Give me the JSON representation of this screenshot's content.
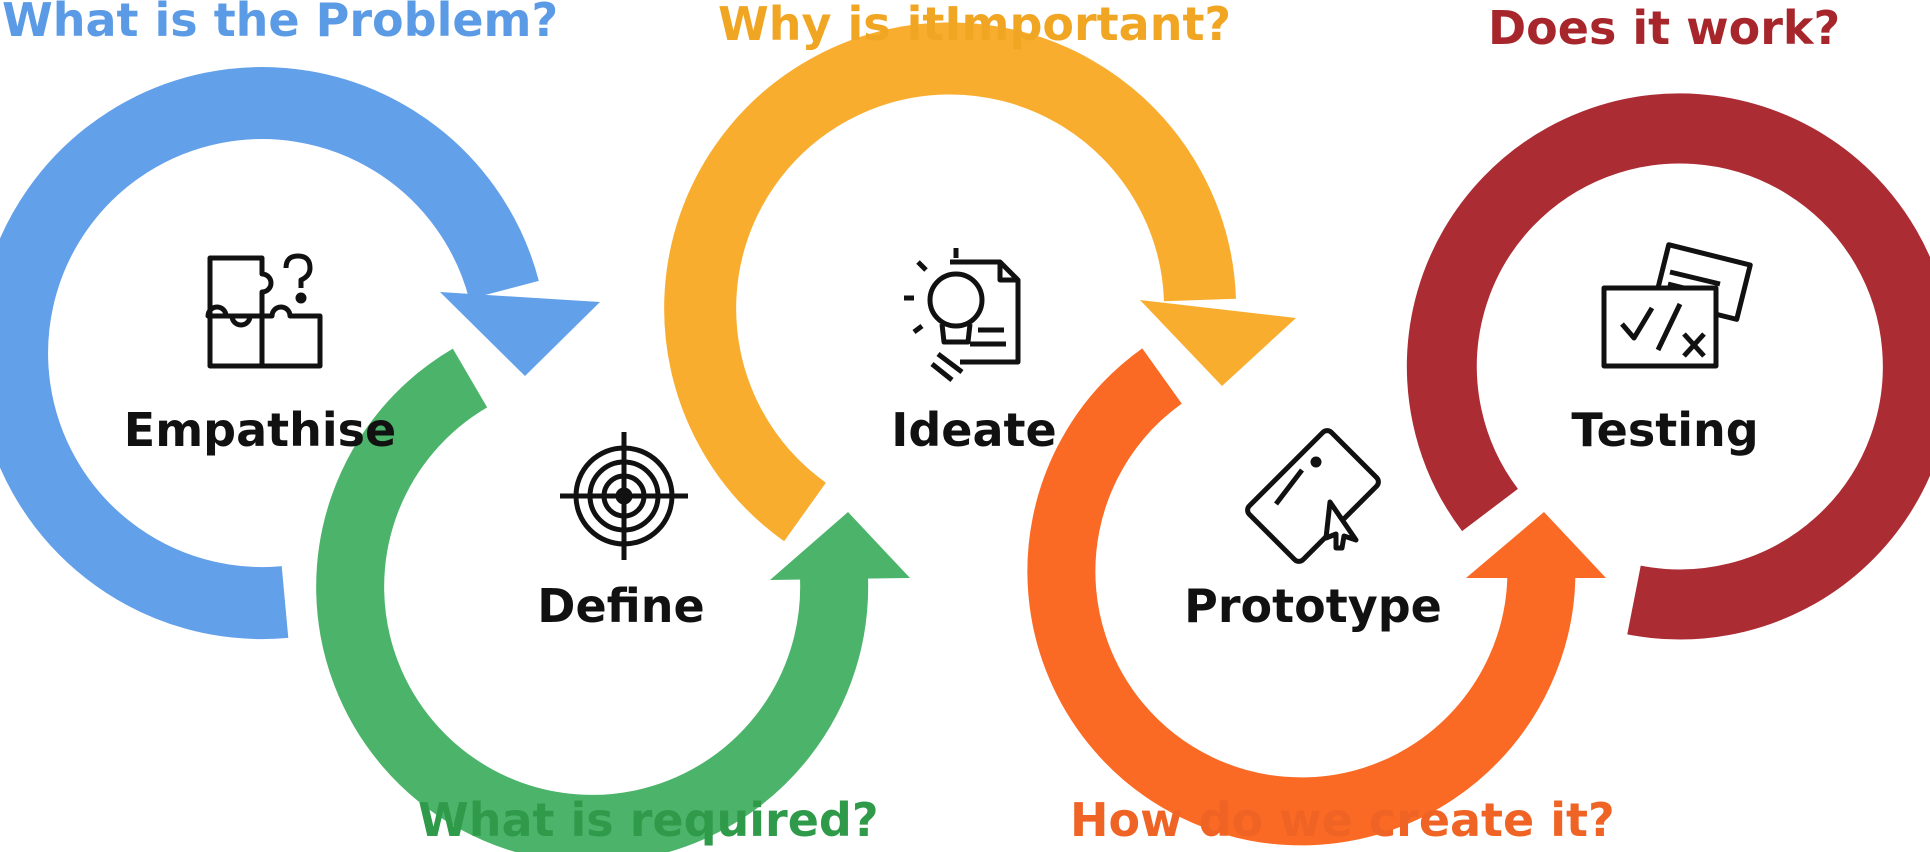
{
  "questions": [
    {
      "text": "What is the Problem?",
      "color": "#5b9be6"
    },
    {
      "text": "What is required?",
      "color": "#2e9a4a"
    },
    {
      "text": "Why is itImportant?",
      "color": "#f1a623"
    },
    {
      "text": "How do we create it?",
      "color": "#ef6325"
    },
    {
      "text": "Does it work?",
      "color": "#a6262c"
    }
  ],
  "stages": [
    {
      "label": "Empathise",
      "color": "#63a0ea",
      "icon": "puzzle-question-icon"
    },
    {
      "label": "Define",
      "color": "#4cb46a",
      "icon": "target-icon"
    },
    {
      "label": "Ideate",
      "color": "#f9ad2f",
      "icon": "lightbulb-document-icon"
    },
    {
      "label": "Prototype",
      "color": "#fb6a24",
      "icon": "tablet-cursor-icon"
    },
    {
      "label": "Testing",
      "color": "#ac2c34",
      "icon": "checklist-icon"
    }
  ]
}
